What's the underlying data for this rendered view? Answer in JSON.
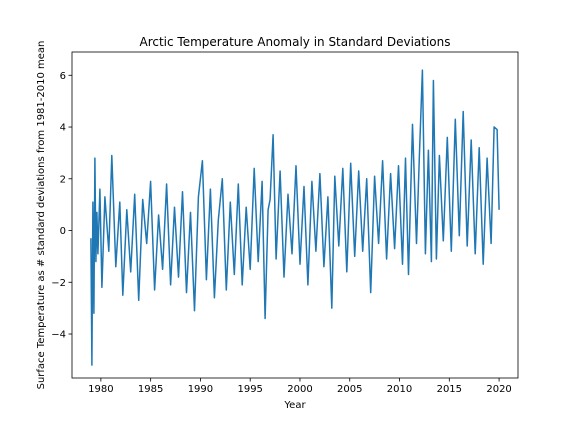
{
  "chart_data": {
    "type": "line",
    "title": "Arctic Temperature Anomaly in Standard Deviations",
    "xlabel": "Year",
    "ylabel": "Surface Temperature as # standard deviations from 1981-2010 mean",
    "xlim": [
      1977.1,
      2021.9
    ],
    "ylim": [
      -5.7,
      6.9
    ],
    "grid": false,
    "legend": "none",
    "x_ticks": [
      1980,
      1985,
      1990,
      1995,
      2000,
      2005,
      2010,
      2015,
      2020
    ],
    "y_ticks": [
      -4,
      -2,
      0,
      2,
      4,
      6
    ],
    "series": [
      {
        "color": "#1f77b4",
        "x": [
          1979.0,
          1979.1,
          1979.2,
          1979.3,
          1979.4,
          1979.5,
          1979.6,
          1979.7,
          1979.8,
          1979.9,
          1980.1,
          1980.4,
          1980.8,
          1981.1,
          1981.5,
          1981.9,
          1982.2,
          1982.6,
          1983.0,
          1983.4,
          1983.8,
          1984.2,
          1984.6,
          1985.0,
          1985.4,
          1985.8,
          1986.2,
          1986.6,
          1987.0,
          1987.4,
          1987.8,
          1988.2,
          1988.6,
          1989.0,
          1989.4,
          1989.8,
          1990.2,
          1990.6,
          1991.0,
          1991.4,
          1991.8,
          1992.2,
          1992.6,
          1993.0,
          1993.4,
          1993.8,
          1994.2,
          1994.6,
          1995.0,
          1995.4,
          1995.8,
          1996.2,
          1996.5,
          1996.8,
          1997.0,
          1997.3,
          1997.6,
          1998.0,
          1998.4,
          1998.8,
          1999.2,
          1999.6,
          2000.0,
          2000.4,
          2000.8,
          2001.2,
          2001.6,
          2002.0,
          2002.4,
          2002.8,
          2003.2,
          2003.5,
          2003.9,
          2004.3,
          2004.7,
          2005.1,
          2005.5,
          2005.9,
          2006.3,
          2006.7,
          2007.1,
          2007.5,
          2007.9,
          2008.3,
          2008.7,
          2009.1,
          2009.5,
          2009.9,
          2010.3,
          2010.6,
          2010.9,
          2011.3,
          2011.7,
          2012.0,
          2012.3,
          2012.6,
          2012.9,
          2013.2,
          2013.4,
          2013.7,
          2014.0,
          2014.4,
          2014.8,
          2015.2,
          2015.6,
          2016.0,
          2016.4,
          2016.8,
          2017.2,
          2017.6,
          2018.0,
          2018.4,
          2018.8,
          2019.2,
          2019.5,
          2019.8,
          2020.0
        ],
        "y": [
          -0.3,
          -5.2,
          1.1,
          -3.2,
          2.8,
          -1.2,
          0.7,
          -0.9,
          0.3,
          1.6,
          -2.2,
          1.3,
          -0.8,
          2.9,
          -1.4,
          1.1,
          -2.5,
          0.8,
          -1.6,
          1.4,
          -2.7,
          1.2,
          -0.5,
          1.9,
          -2.3,
          0.6,
          -1.5,
          1.8,
          -2.1,
          0.9,
          -1.8,
          1.5,
          -2.4,
          0.7,
          -3.1,
          1.3,
          2.7,
          -1.9,
          1.6,
          -2.6,
          0.4,
          2.0,
          -2.3,
          1.1,
          -1.7,
          1.8,
          -2.1,
          0.9,
          -1.5,
          2.4,
          -1.2,
          1.9,
          -3.4,
          0.8,
          1.2,
          3.7,
          -1.1,
          2.3,
          -1.8,
          1.4,
          -0.9,
          2.5,
          -1.3,
          1.7,
          -2.1,
          1.9,
          -0.8,
          2.2,
          -1.4,
          1.3,
          -3.0,
          2.1,
          -0.6,
          2.4,
          -1.6,
          2.6,
          -1.0,
          2.3,
          -0.8,
          2.0,
          -2.4,
          2.1,
          -0.5,
          2.7,
          -1.1,
          2.2,
          -0.7,
          2.5,
          -1.3,
          2.8,
          -1.7,
          4.1,
          -0.5,
          2.9,
          6.2,
          -0.9,
          3.1,
          -1.2,
          5.8,
          -1.1,
          2.9,
          -0.4,
          3.6,
          -0.8,
          4.3,
          -0.2,
          4.6,
          -0.6,
          3.5,
          -0.9,
          3.2,
          -1.3,
          2.8,
          -0.5,
          4.0,
          3.9,
          0.8
        ]
      }
    ]
  }
}
